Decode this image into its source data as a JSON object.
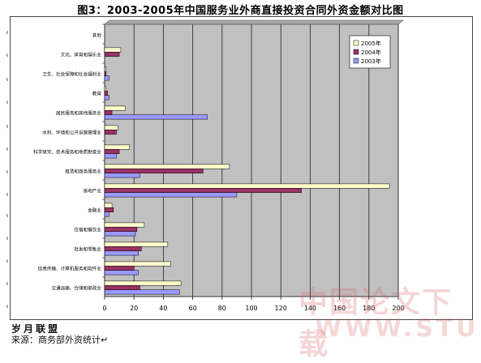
{
  "title": "图3：2003-2005年中国服务业外商直接投资合同外资金额对比图",
  "source": {
    "brand": "岁月联盟",
    "text": "来源：商务部外资统计↵"
  },
  "watermark": {
    "cn": "中国论文下载",
    "url": "WWW.STUDA.NE"
  },
  "colors": {
    "plot_bg": "#c0c0c0",
    "s2005": "#ffffcc",
    "s2004": "#993366",
    "s2003": "#9999ff"
  },
  "chart_data": {
    "type": "bar",
    "orientation": "horizontal",
    "title": "图3：2003-2005年中国服务业外商直接投资合同外资金额对比图",
    "categories": [
      "其他",
      "文化、体育和娱乐业",
      "卫生、社会保障和社会福利业",
      "教育",
      "居民服务和其他服务业",
      "水利、环境和公共设施管理业",
      "科学研究、技术服务和地质勘查业",
      "租赁和商务服务业",
      "房地产业",
      "金融业",
      "住宿和餐饮业",
      "批发和零售业",
      "信息传输、计算机服务和软件业",
      "交通运输、仓储和邮政业"
    ],
    "series": [
      {
        "name": "2005年",
        "color": "#ffffcc",
        "values": [
          0,
          11,
          1,
          1,
          14,
          9,
          17,
          85,
          194,
          5,
          27,
          43,
          45,
          52
        ]
      },
      {
        "name": "2004年",
        "color": "#993366",
        "values": [
          0,
          10,
          1,
          2,
          5,
          8,
          10,
          67,
          134,
          6,
          22,
          25,
          20,
          24
        ]
      },
      {
        "name": "2003年",
        "color": "#9999ff",
        "values": [
          0,
          0,
          3,
          3,
          70,
          0,
          8,
          24,
          90,
          3,
          21,
          23,
          23,
          51
        ]
      }
    ],
    "xlim": [
      0,
      200
    ],
    "xticks": [
      0,
      20,
      40,
      60,
      80,
      100,
      120,
      140,
      160,
      180,
      200
    ],
    "grid": true,
    "legend": "top-right"
  }
}
